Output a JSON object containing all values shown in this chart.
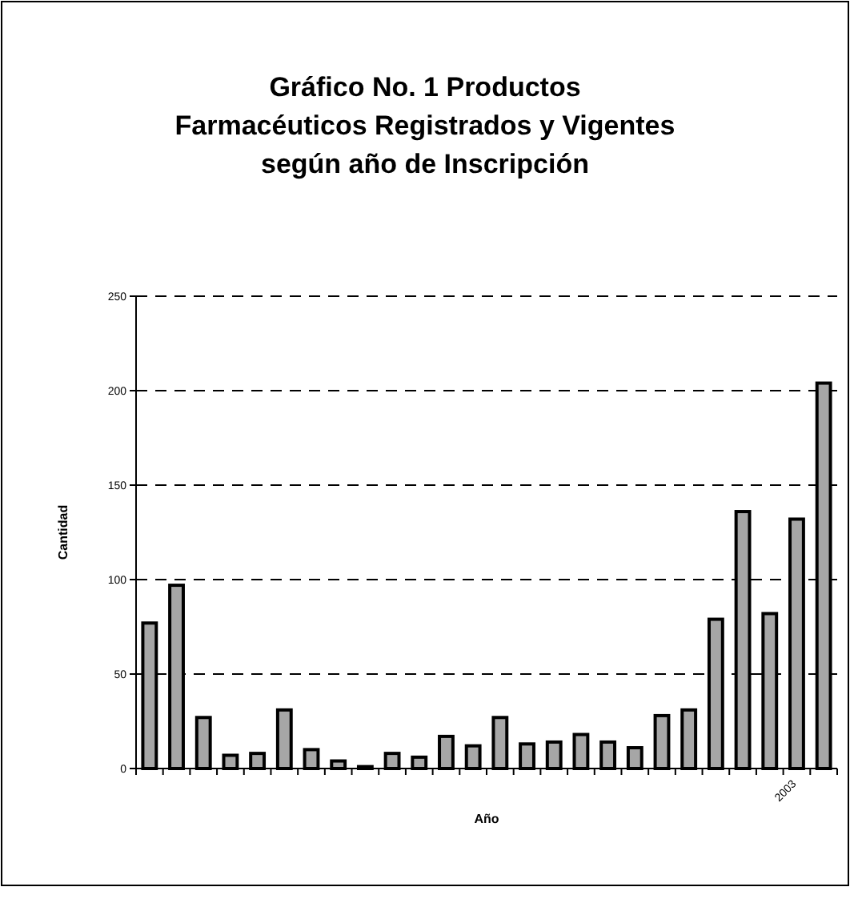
{
  "chart_data": {
    "type": "bar",
    "title": "Gráfico No. 1 Productos Farmacéuticos Registrados y Vigentes según año de Inscripción",
    "xlabel": "Año",
    "ylabel": "Cantidad",
    "categories": [
      null,
      null,
      null,
      null,
      null,
      null,
      null,
      null,
      null,
      null,
      null,
      null,
      null,
      null,
      null,
      null,
      null,
      null,
      null,
      null,
      null,
      null,
      null,
      null,
      "2003",
      null
    ],
    "values": [
      77,
      97,
      27,
      7,
      8,
      31,
      10,
      4,
      1,
      8,
      6,
      17,
      12,
      27,
      13,
      14,
      18,
      14,
      11,
      28,
      31,
      79,
      136,
      82,
      132,
      204
    ],
    "color": "#a6a6a6",
    "ylim": [
      0,
      250
    ],
    "yticks": [
      0,
      50,
      100,
      150,
      200,
      250
    ],
    "grid": "y"
  }
}
